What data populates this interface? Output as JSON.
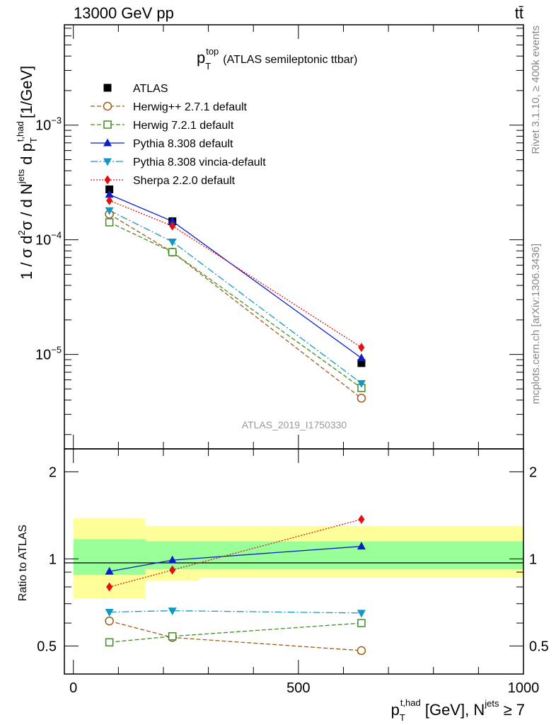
{
  "header": {
    "beam_label": "13000 GeV pp",
    "process_label": "tt̄"
  },
  "side_labels": {
    "rivet": "Rivet 3.1.10, ≥ 400k events",
    "mcplots": "mcplots.cern.ch [arXiv:1306.3436]"
  },
  "chart_data": [
    {
      "type": "line",
      "panel": "main",
      "title": "(ATLAS semileptonic ttbar)",
      "title_var": {
        "base": "p",
        "sub": "T",
        "sup": "top"
      },
      "analysis_tag": "ATLAS_2019_I1750330",
      "ylabel": "1 / σ d²σ / d N^jets d p_T^t,had [1/GeV]",
      "ylabel_parts": {
        "prefix": "1 / σ d",
        "sup2": "2",
        "mid": "σ / d N",
        "sup_jets": "jets",
        "dp": " d p",
        "sub_T": "T",
        "sup_thad": "t,had",
        "unit": "[1/GeV]"
      },
      "yscale": "log",
      "ylim": [
        1.5e-06,
        0.0075
      ],
      "xlim": [
        -20,
        1000
      ],
      "y_ticks": [
        {
          "value": 1e-05,
          "base": "10",
          "exp": "−5"
        },
        {
          "value": 0.0001,
          "base": "10",
          "exp": "−4"
        },
        {
          "value": 0.001,
          "base": "10",
          "exp": "−3"
        }
      ],
      "legend_position": "top-left",
      "x": [
        80,
        220,
        640
      ],
      "series": [
        {
          "name": "ATLAS",
          "color": "#000000",
          "marker": "square-filled",
          "dash": "",
          "line": false,
          "values": [
            0.000275,
            0.000145,
            8.4e-06
          ]
        },
        {
          "name": "Herwig++ 2.7.1 default",
          "color": "#a05a14",
          "marker": "circle-open",
          "dash": "6,3",
          "line": true,
          "values": [
            0.000167,
            7.8e-05,
            4.15e-06
          ]
        },
        {
          "name": "Herwig 7.2.1 default",
          "color": "#3d8f1e",
          "marker": "square-open",
          "dash": "6,3",
          "line": true,
          "values": [
            0.000142,
            7.8e-05,
            5.1e-06
          ]
        },
        {
          "name": "Pythia 8.308 default",
          "color": "#0a1ec8",
          "marker": "triangle-up",
          "dash": "",
          "line": true,
          "values": [
            0.000248,
            0.000145,
            9.3e-06
          ]
        },
        {
          "name": "Pythia 8.308 vincia-default",
          "color": "#1497c8",
          "marker": "triangle-down",
          "dash": "10,3,2,3",
          "line": true,
          "values": [
            0.00018,
            9.6e-05,
            5.6e-06
          ]
        },
        {
          "name": "Sherpa 2.2.0 default",
          "color": "#e31010",
          "marker": "diamond",
          "dash": "2,2",
          "line": true,
          "values": [
            0.00022,
            0.000132,
            1.15e-05
          ]
        }
      ]
    },
    {
      "type": "line",
      "panel": "ratio",
      "ylabel": "Ratio to ATLAS",
      "yscale": "log",
      "ylim": [
        0.4,
        2.4
      ],
      "xlim": [
        -20,
        1000
      ],
      "y_ticks": [
        {
          "value": 0.5,
          "label": "0.5"
        },
        {
          "value": 1,
          "label": "1"
        },
        {
          "value": 2,
          "label": "2"
        }
      ],
      "x_ticks": [
        {
          "value": 0,
          "label": "0"
        },
        {
          "value": 500,
          "label": "500"
        },
        {
          "value": 1000,
          "label": "1000"
        }
      ],
      "xlabel": "p_T^t,had [GeV], N^jets ≥ 7",
      "xlabel_parts": {
        "p": "p",
        "sub_T": "T",
        "sup_thad": "t,had",
        "unit": " [GeV], N",
        "sup_jets": "jets",
        "cond": " ≥ 7"
      },
      "uncertainty_bands": [
        {
          "x_range": [
            0,
            160
          ],
          "stat": [
            0.88,
            1.17
          ],
          "total": [
            0.73,
            1.38
          ]
        },
        {
          "x_range": [
            160,
            280
          ],
          "stat": [
            0.92,
            1.15
          ],
          "total": [
            0.84,
            1.3
          ]
        },
        {
          "x_range": [
            280,
            1000
          ],
          "stat": [
            0.92,
            1.15
          ],
          "total": [
            0.86,
            1.3
          ]
        }
      ],
      "x": [
        80,
        220,
        640
      ],
      "series": [
        {
          "name": "Herwig++ 2.7.1 default",
          "values": [
            0.61,
            0.535,
            0.482
          ]
        },
        {
          "name": "Herwig 7.2.1 default",
          "values": [
            0.515,
            0.54,
            0.6
          ]
        },
        {
          "name": "Pythia 8.308 default",
          "values": [
            0.905,
            0.99,
            1.105
          ]
        },
        {
          "name": "Pythia 8.308 vincia-default",
          "values": [
            0.655,
            0.662,
            0.65
          ]
        },
        {
          "name": "Sherpa 2.2.0 default",
          "values": [
            0.8,
            0.915,
            1.37
          ]
        }
      ]
    }
  ]
}
